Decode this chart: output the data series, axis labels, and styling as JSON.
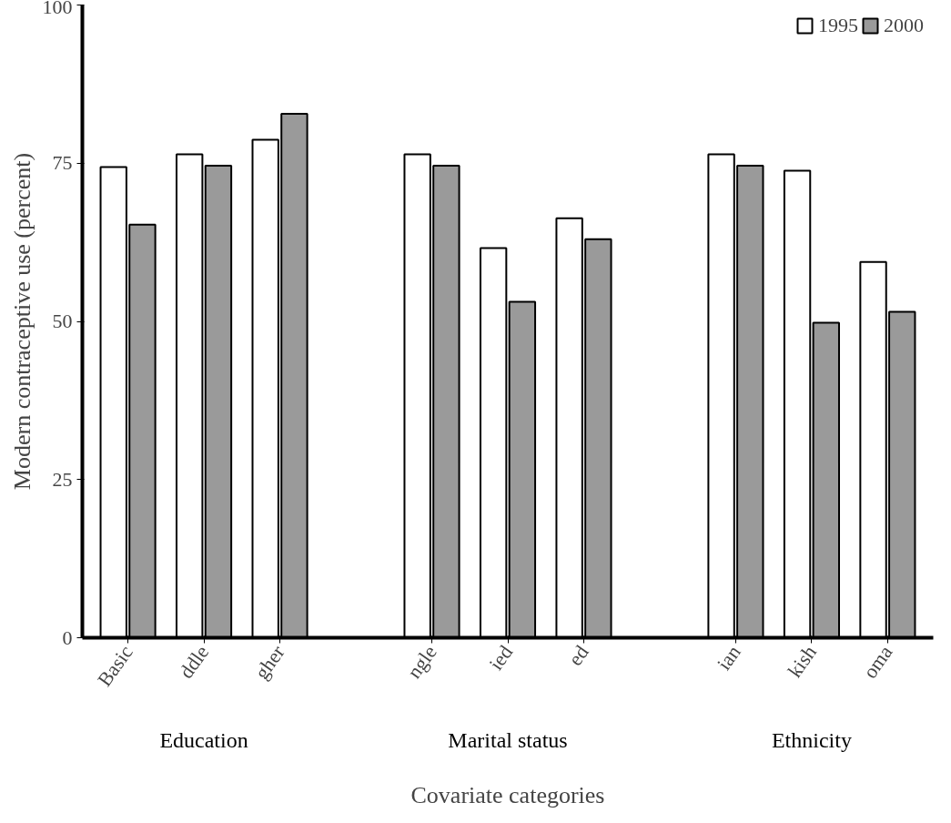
{
  "chart_data": {
    "type": "bar",
    "xlabel": "Covariate categories",
    "ylabel": "Modern contraceptive use (percent)",
    "categories": [
      "Basic",
      "ddle",
      "gher",
      null,
      "ngle",
      "ied",
      "ed",
      null,
      "ian",
      "kish",
      "oma"
    ],
    "series": [
      {
        "name": "1995",
        "color": "#ffffff",
        "values": [
          74.4,
          76.4,
          78.7,
          null,
          76.4,
          61.6,
          66.3,
          null,
          76.4,
          73.8,
          59.4
        ]
      },
      {
        "name": "2000",
        "color": "#9a9a9a",
        "values": [
          65.3,
          74.6,
          82.8,
          null,
          74.6,
          53.1,
          63.0,
          null,
          74.6,
          49.8,
          51.5
        ]
      }
    ],
    "annotations": [
      "Education",
      "Marital status",
      "Ethnicity"
    ],
    "ylim": [
      0,
      100
    ],
    "yticks": [
      0,
      25,
      50,
      75,
      100
    ],
    "grid": false,
    "legend": "top right"
  }
}
